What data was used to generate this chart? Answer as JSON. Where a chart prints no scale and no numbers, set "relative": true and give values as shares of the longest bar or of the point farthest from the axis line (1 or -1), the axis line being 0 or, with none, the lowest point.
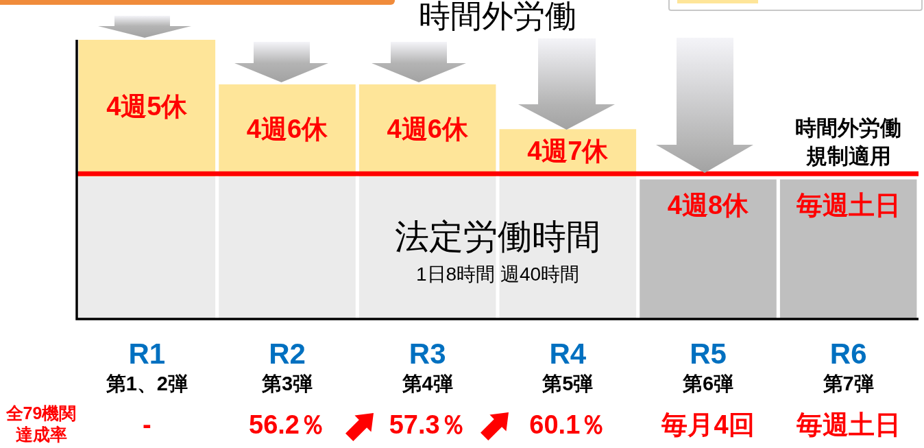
{
  "chart_data": {
    "type": "bar",
    "title": "時間外労働",
    "stacked": true,
    "relative": true,
    "categories": [
      "R1\n第1、2弾",
      "R2\n第3弾",
      "R3\n第4弾",
      "R4\n第5弾",
      "R5\n第6弾",
      "R6\n第7弾"
    ],
    "series": [
      {
        "colors": [
          "#ebebeb",
          "#ebebeb",
          "#ebebeb",
          "#ebebeb",
          "#bfbfbf",
          "#bfbfbf"
        ],
        "values": [
          0.51,
          0.51,
          0.51,
          0.51,
          0.5,
          0.5
        ]
      },
      {
        "color": "#fee599",
        "values": [
          0.49,
          0.33,
          0.33,
          0.17,
          null,
          null
        ]
      }
    ],
    "ref_lines": [
      {
        "axis": "y",
        "value": 0.52,
        "color": "#ff0000"
      }
    ],
    "annotations": [
      "時間外労働規制適用",
      "法定労働時間",
      "1日8時間 週40時間",
      "全79機関達成率",
      "-",
      "56.2％",
      "57.3％",
      "60.1％",
      "毎月4回",
      "毎週土日",
      "4週5休",
      "4週6休",
      "4週6休",
      "4週7休",
      "4週8休",
      "毎週土日"
    ]
  }
}
